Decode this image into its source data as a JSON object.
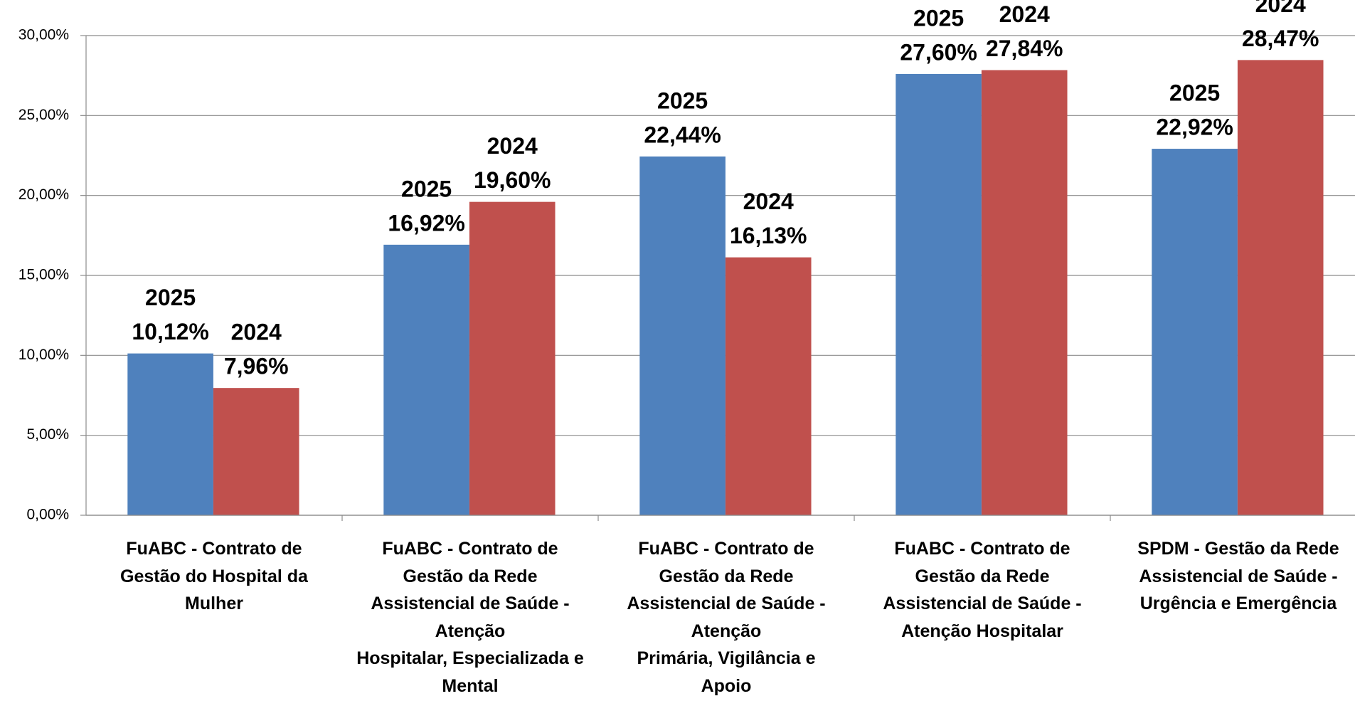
{
  "chart_data": {
    "type": "bar",
    "categories": [
      "FuABC - Contrato de\nGestão do Hospital da\nMulher",
      "FuABC - Contrato de\nGestão da Rede\nAssistencial de Saúde -\nAtenção\nHospitalar, Especializada e\nMental",
      "FuABC - Contrato de\nGestão da Rede\nAssistencial de Saúde -\nAtenção\nPrimária, Vigilância e\nApoio",
      "FuABC - Contrato de\nGestão da Rede\nAssistencial de Saúde -\nAtenção Hospitalar",
      "SPDM - Gestão da Rede\nAssistencial de Saúde -\nUrgência e Emergência"
    ],
    "series": [
      {
        "name": "2025",
        "color": "#4f81bd",
        "values": [
          10.12,
          16.92,
          22.44,
          27.6,
          22.92
        ],
        "value_labels": [
          "10,12%",
          "16,92%",
          "22,44%",
          "27,60%",
          "22,92%"
        ]
      },
      {
        "name": "2024",
        "color": "#c0504d",
        "values": [
          7.96,
          19.6,
          16.13,
          27.84,
          28.47
        ],
        "value_labels": [
          "7,96%",
          "19,60%",
          "16,13%",
          "27,84%",
          "28,47%"
        ]
      }
    ],
    "ylim": [
      0,
      30
    ],
    "yticks": [
      {
        "value": 0,
        "label": "0,00%"
      },
      {
        "value": 5,
        "label": "5,00%"
      },
      {
        "value": 10,
        "label": "10,00%"
      },
      {
        "value": 15,
        "label": "15,00%"
      },
      {
        "value": 20,
        "label": "20,00%"
      },
      {
        "value": 25,
        "label": "25,00%"
      },
      {
        "value": 30,
        "label": "30,00%"
      }
    ],
    "grid": true
  }
}
